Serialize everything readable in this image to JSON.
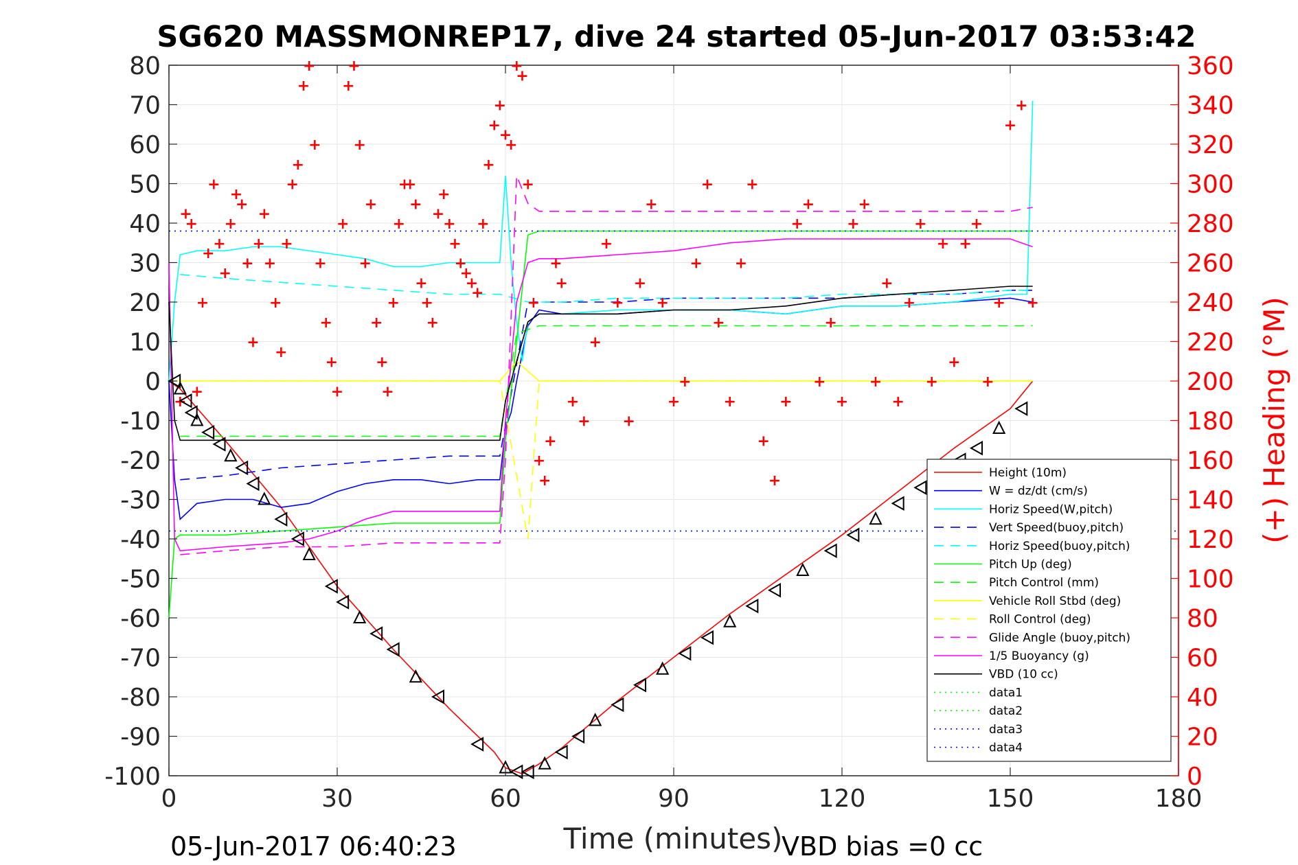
{
  "chart_data": {
    "type": "line",
    "title": "SG620 MASSMONREP17, dive 24 started 05-Jun-2017 03:53:42",
    "xlabel": "Time (minutes)",
    "ylabel_right": "(+) Heading (°M)",
    "xlim": [
      0,
      180
    ],
    "ylim": [
      -100,
      80
    ],
    "ylim_right": [
      0,
      360
    ],
    "x_ticks": [
      "0",
      "30",
      "60",
      "90",
      "120",
      "150",
      "180"
    ],
    "y_ticks": [
      "80",
      "70",
      "60",
      "50",
      "40",
      "30",
      "20",
      "10",
      "0",
      "-10",
      "-20",
      "-30",
      "-40",
      "-50",
      "-60",
      "-70",
      "-80",
      "-90",
      "-100"
    ],
    "y_ticks_right": [
      "360",
      "340",
      "320",
      "300",
      "280",
      "260",
      "240",
      "220",
      "200",
      "180",
      "160",
      "140",
      "120",
      "100",
      "80",
      "60",
      "40",
      "20",
      "0"
    ],
    "grid": true,
    "legend_position": "lower-right",
    "footer_left": "05-Jun-2017 06:40:23",
    "footer_right": "VBD bias =0 cc",
    "series": [
      {
        "name": "Height (10m)",
        "color": "#ff0000",
        "style": "solid",
        "x": [
          0,
          2,
          10,
          20,
          30,
          40,
          50,
          58,
          60,
          63,
          66,
          70,
          80,
          90,
          100,
          110,
          120,
          130,
          140,
          150,
          154
        ],
        "y": [
          0,
          -2,
          -15,
          -32,
          -52,
          -68,
          -83,
          -94,
          -98,
          -99.5,
          -97,
          -93,
          -81,
          -70,
          -59,
          -49,
          -39,
          -28,
          -17,
          -7,
          0
        ]
      },
      {
        "name": "W = dz/dt (cm/s)",
        "color": "#0000ff",
        "style": "solid",
        "x": [
          0,
          1,
          2,
          5,
          10,
          15,
          20,
          25,
          30,
          35,
          40,
          45,
          50,
          55,
          59,
          60,
          61,
          62,
          64,
          66,
          70,
          80,
          90,
          100,
          110,
          120,
          130,
          140,
          150,
          154
        ],
        "y": [
          0,
          -25,
          -35,
          -31,
          -30,
          -30,
          -32,
          -31,
          -28,
          -26,
          -25,
          -25,
          -26,
          -25,
          -25,
          -12,
          -8,
          0,
          14,
          18,
          17,
          17,
          18,
          18,
          17,
          19,
          19,
          20,
          21,
          20
        ]
      },
      {
        "name": "Horiz Speed(W,pitch)",
        "color": "#00ffff",
        "style": "solid",
        "x": [
          0,
          1,
          2,
          5,
          10,
          15,
          20,
          25,
          30,
          35,
          40,
          45,
          50,
          55,
          59,
          60,
          61,
          62,
          63,
          64,
          66,
          70,
          80,
          90,
          100,
          110,
          120,
          130,
          140,
          150,
          153,
          154
        ],
        "y": [
          0,
          20,
          32,
          33,
          33,
          34,
          34,
          33,
          32,
          31,
          29,
          29,
          30,
          30,
          30,
          52,
          30,
          15,
          5,
          15,
          17,
          17,
          18,
          18,
          18,
          17,
          19,
          19,
          20,
          22,
          22,
          71
        ]
      },
      {
        "name": "Vert Speed(buoy,pitch)",
        "color": "#0000ff",
        "style": "dashed",
        "x": [
          2,
          10,
          20,
          30,
          40,
          50,
          59,
          64,
          70,
          80,
          90,
          100,
          110,
          120,
          130,
          140,
          150,
          154
        ],
        "y": [
          -25,
          -24,
          -22,
          -21,
          -20,
          -19,
          -19,
          20,
          20,
          20,
          21,
          21,
          21,
          21,
          22,
          22,
          23,
          23
        ]
      },
      {
        "name": "Horiz Speed(buoy,pitch)",
        "color": "#00ffff",
        "style": "dashed",
        "x": [
          2,
          10,
          20,
          30,
          40,
          50,
          59,
          64,
          70,
          80,
          90,
          100,
          110,
          120,
          130,
          140,
          150,
          154
        ],
        "y": [
          27,
          26,
          25,
          24,
          23,
          22,
          22,
          20,
          20,
          21,
          21,
          21,
          21,
          22,
          22,
          22,
          23,
          23
        ]
      },
      {
        "name": "Pitch Up (deg)",
        "color": "#00ff00",
        "style": "solid",
        "x": [
          0,
          1,
          2,
          5,
          10,
          20,
          30,
          40,
          50,
          59,
          60,
          62,
          64,
          66,
          70,
          80,
          90,
          100,
          110,
          120,
          130,
          140,
          150,
          154
        ],
        "y": [
          -60,
          -40,
          -39,
          -39,
          -39,
          -38,
          -37,
          -36,
          -36,
          -36,
          -15,
          10,
          37,
          38,
          38,
          38,
          38,
          38,
          38,
          38,
          38,
          38,
          38,
          38
        ]
      },
      {
        "name": "Pitch Control (mm)",
        "color": "#00ff00",
        "style": "dashed",
        "x": [
          2,
          20,
          40,
          59,
          62,
          66,
          80,
          100,
          120,
          140,
          154
        ],
        "y": [
          -14,
          -14,
          -14,
          -14,
          12,
          14,
          14,
          14,
          14,
          14,
          14
        ]
      },
      {
        "name": "Vehicle Roll Stbd (deg)",
        "color": "#ffff00",
        "style": "solid",
        "x": [
          0,
          2,
          5,
          10,
          20,
          30,
          40,
          50,
          59,
          62,
          66,
          70,
          80,
          90,
          100,
          110,
          120,
          130,
          140,
          150,
          154
        ],
        "y": [
          0,
          0,
          0,
          0,
          0,
          0,
          0,
          0,
          0,
          5,
          0,
          0,
          0,
          0,
          0,
          0,
          0,
          0,
          0,
          0,
          0
        ]
      },
      {
        "name": "Roll Control (deg)",
        "color": "#ffff00",
        "style": "dashed",
        "x": [
          2,
          20,
          40,
          59,
          64,
          66,
          80,
          100,
          120,
          140,
          154
        ],
        "y": [
          0,
          0,
          0,
          0,
          -40,
          0,
          0,
          0,
          0,
          0,
          0
        ]
      },
      {
        "name": "Glide Angle (buoy,pitch)",
        "color": "#ff00ff",
        "style": "dashed",
        "x": [
          2,
          10,
          20,
          30,
          40,
          50,
          59,
          60,
          62,
          64,
          66,
          70,
          80,
          90,
          100,
          110,
          120,
          130,
          140,
          150,
          154
        ],
        "y": [
          -44,
          -43,
          -42,
          -42,
          -41,
          -41,
          -41,
          -20,
          52,
          45,
          43,
          43,
          43,
          43,
          43,
          43,
          43,
          43,
          43,
          43,
          44
        ]
      },
      {
        "name": "1/5 Buoyancy (g)",
        "color": "#ff00ff",
        "style": "solid",
        "x": [
          0,
          1,
          2,
          10,
          20,
          25,
          30,
          35,
          40,
          50,
          59,
          60,
          62,
          64,
          66,
          70,
          80,
          90,
          100,
          110,
          120,
          130,
          140,
          150,
          154
        ],
        "y": [
          30,
          -40,
          -43,
          -42,
          -41,
          -40,
          -38,
          -35,
          -33,
          -33,
          -33,
          -10,
          20,
          30,
          31,
          31,
          32,
          33,
          35,
          36,
          36,
          36,
          36,
          36,
          34
        ]
      },
      {
        "name": "VBD (10 cc)",
        "color": "#000000",
        "style": "solid",
        "x": [
          0,
          1,
          2,
          10,
          20,
          30,
          40,
          50,
          59,
          60,
          62,
          64,
          66,
          70,
          80,
          90,
          100,
          110,
          120,
          130,
          140,
          150,
          154
        ],
        "y": [
          20,
          -10,
          -15,
          -15,
          -15,
          -15,
          -15,
          -15,
          -15,
          -5,
          5,
          15,
          17,
          17,
          17,
          18,
          18,
          19,
          21,
          22,
          23,
          24,
          24
        ]
      },
      {
        "name": "data1",
        "color": "#00ff00",
        "style": "dotted",
        "x": [
          0,
          180
        ],
        "y": [
          38,
          38
        ]
      },
      {
        "name": "data2",
        "color": "#00ff00",
        "style": "dotted",
        "x": [
          0,
          180
        ],
        "y": [
          -38,
          -38
        ]
      },
      {
        "name": "data3",
        "color": "#0000ff",
        "style": "dotted",
        "x": [
          0,
          180
        ],
        "y": [
          38,
          38
        ]
      },
      {
        "name": "data4",
        "color": "#0000ff",
        "style": "dotted",
        "x": [
          0,
          180
        ],
        "y": [
          -38,
          -38
        ]
      }
    ],
    "heading": {
      "axis": "right",
      "marker": "+",
      "color": "#ff0000",
      "x": [
        2,
        3,
        4,
        5,
        6,
        7,
        8,
        9,
        10,
        11,
        12,
        13,
        14,
        15,
        16,
        17,
        18,
        19,
        20,
        21,
        22,
        23,
        24,
        25,
        26,
        27,
        28,
        29,
        30,
        31,
        32,
        33,
        34,
        35,
        36,
        37,
        38,
        39,
        40,
        41,
        42,
        43,
        44,
        45,
        46,
        47,
        48,
        49,
        50,
        51,
        52,
        53,
        54,
        55,
        56,
        57,
        58,
        59,
        60,
        61,
        62,
        63,
        64,
        65,
        66,
        67,
        68,
        69,
        70,
        72,
        74,
        76,
        78,
        80,
        82,
        84,
        86,
        88,
        90,
        92,
        94,
        96,
        98,
        100,
        102,
        104,
        106,
        108,
        110,
        112,
        114,
        116,
        118,
        120,
        122,
        124,
        126,
        128,
        130,
        132,
        134,
        136,
        138,
        140,
        142,
        144,
        146,
        148,
        150,
        152,
        154
      ],
      "y": [
        190,
        285,
        280,
        195,
        240,
        265,
        300,
        270,
        255,
        280,
        295,
        290,
        260,
        220,
        270,
        285,
        260,
        240,
        215,
        270,
        300,
        310,
        350,
        360,
        320,
        260,
        230,
        210,
        195,
        280,
        350,
        360,
        320,
        260,
        290,
        230,
        210,
        195,
        240,
        280,
        300,
        300,
        290,
        250,
        240,
        230,
        285,
        295,
        280,
        270,
        260,
        255,
        250,
        245,
        280,
        310,
        330,
        340,
        325,
        320,
        360,
        355,
        300,
        240,
        160,
        150,
        170,
        260,
        250,
        190,
        180,
        220,
        270,
        240,
        180,
        250,
        290,
        240,
        190,
        200,
        260,
        300,
        230,
        190,
        260,
        300,
        170,
        150,
        190,
        280,
        290,
        200,
        230,
        190,
        280,
        290,
        200,
        250,
        190,
        240,
        280,
        200,
        270,
        210,
        270,
        280,
        200,
        240,
        330,
        340,
        240
      ]
    },
    "height_markers": {
      "x": [
        1,
        2,
        3,
        4,
        5,
        7,
        9,
        11,
        13,
        15,
        17,
        20,
        23,
        25,
        29,
        31,
        34,
        37,
        40,
        44,
        48,
        55,
        60,
        62,
        64,
        67,
        70,
        73,
        76,
        80,
        84,
        88,
        92,
        96,
        100,
        104,
        108,
        113,
        118,
        122,
        126,
        130,
        134,
        137,
        141,
        144,
        148,
        152
      ],
      "y": [
        0,
        -2,
        -5,
        -8,
        -10,
        -13,
        -16,
        -19,
        -22,
        -26,
        -30,
        -35,
        -40,
        -44,
        -52,
        -56,
        -60,
        -64,
        -68,
        -75,
        -80,
        -92,
        -98,
        -99,
        -99,
        -97,
        -94,
        -90,
        -86,
        -82,
        -77,
        -73,
        -69,
        -65,
        -61,
        -57,
        -53,
        -48,
        -43,
        -39,
        -35,
        -31,
        -27,
        -24,
        -20,
        -17,
        -12,
        -7
      ]
    }
  }
}
